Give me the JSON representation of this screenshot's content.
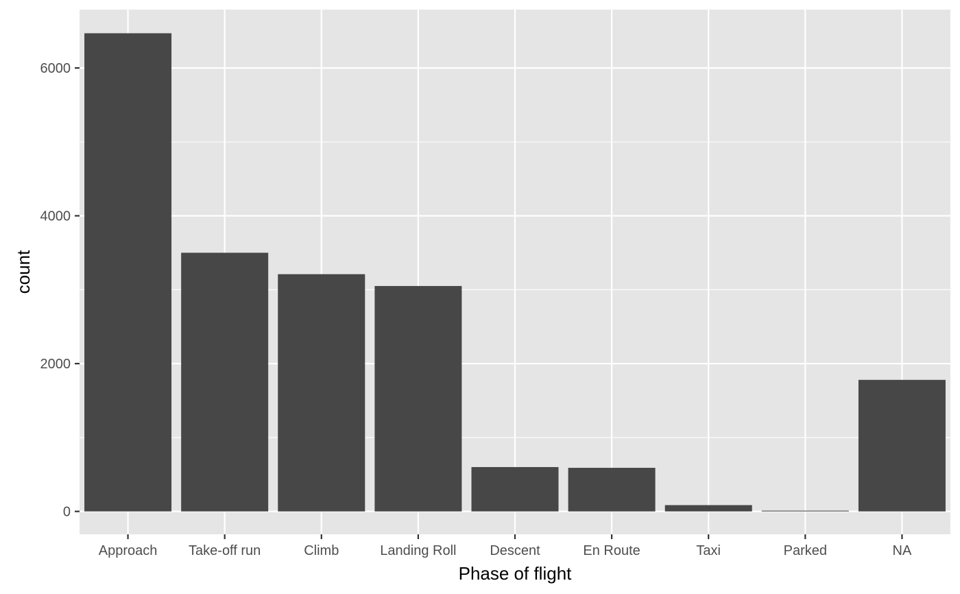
{
  "chart_data": {
    "type": "bar",
    "title": "",
    "xlabel": "Phase of flight",
    "ylabel": "count",
    "categories": [
      "Approach",
      "Take-off run",
      "Climb",
      "Landing Roll",
      "Descent",
      "En Route",
      "Taxi",
      "Parked",
      "NA"
    ],
    "values": [
      6470,
      3500,
      3210,
      3050,
      600,
      590,
      85,
      10,
      1780
    ],
    "ylim": [
      -310,
      6790
    ],
    "yticks": [
      0,
      2000,
      4000,
      6000
    ],
    "ytick_labels": [
      "0",
      "2000",
      "4000",
      "6000"
    ],
    "grid": true,
    "legend": "none",
    "colors": {
      "panel": "#e5e5e5",
      "grid_major": "#ffffff",
      "bar": "#474747",
      "tick": "#333333",
      "tick_label": "#4d4d4d"
    }
  }
}
